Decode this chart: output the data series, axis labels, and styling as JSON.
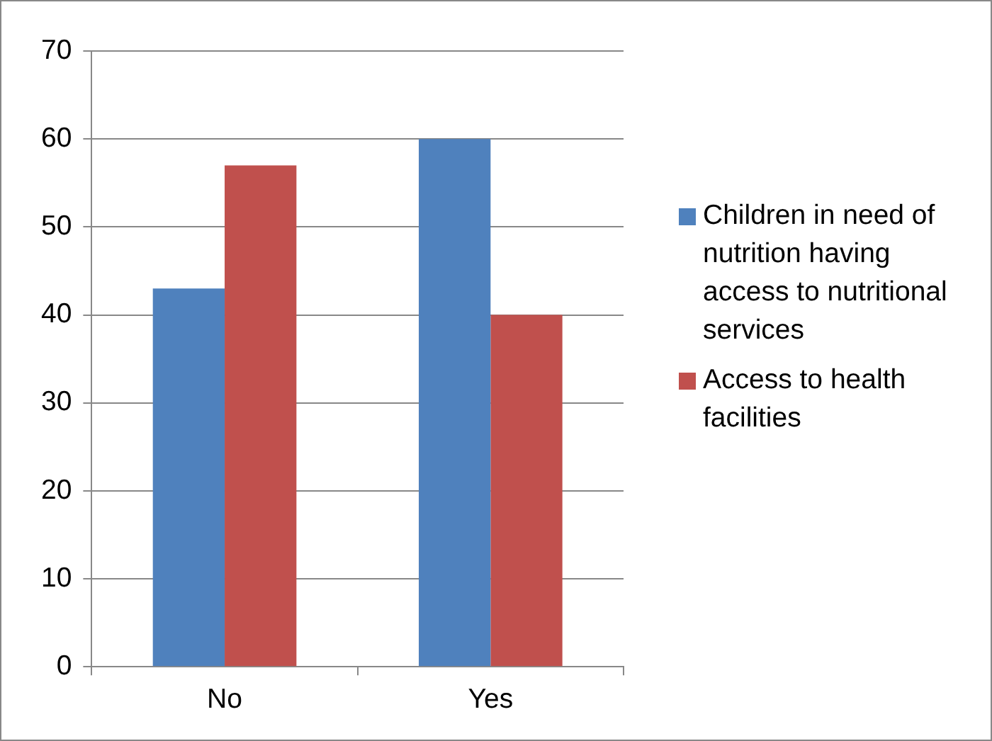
{
  "chart_data": {
    "type": "bar",
    "categories": [
      "No",
      "Yes"
    ],
    "series": [
      {
        "name": "Children in need of nutrition having access to nutritional services",
        "color": "#4f81bd",
        "values": [
          43,
          60
        ]
      },
      {
        "name": "Access to health facilities",
        "color": "#c0504d",
        "values": [
          57,
          40
        ]
      }
    ],
    "ylim": [
      0,
      70
    ],
    "yticks": [
      0,
      10,
      20,
      30,
      40,
      50,
      60,
      70
    ],
    "grid": "y",
    "legend": "right"
  }
}
